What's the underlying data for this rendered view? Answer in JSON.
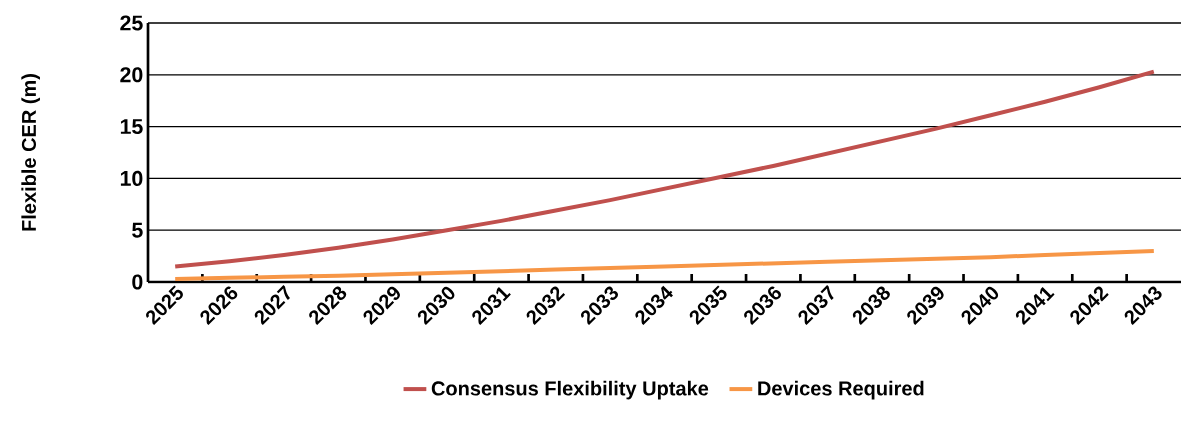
{
  "chart_data": {
    "type": "line",
    "ylabel": "Flexible CER (m)",
    "categories": [
      "2025",
      "2026",
      "2027",
      "2028",
      "2029",
      "2030",
      "2031",
      "2032",
      "2033",
      "2034",
      "2035",
      "2036",
      "2037",
      "2038",
      "2039",
      "2040",
      "2041",
      "2042",
      "2043"
    ],
    "series": [
      {
        "name": "Consensus Flexibility Uptake",
        "color": "#c0504d",
        "values": [
          1.5,
          2.0,
          2.6,
          3.3,
          4.1,
          5.0,
          5.9,
          6.9,
          7.9,
          9.0,
          10.1,
          11.2,
          12.4,
          13.6,
          14.8,
          16.1,
          17.4,
          18.8,
          20.3
        ]
      },
      {
        "name": "Devices Required",
        "color": "#f79646",
        "values": [
          0.3,
          0.4,
          0.5,
          0.6,
          0.75,
          0.9,
          1.05,
          1.2,
          1.35,
          1.5,
          1.65,
          1.8,
          1.95,
          2.1,
          2.25,
          2.4,
          2.6,
          2.8,
          3.0
        ]
      }
    ],
    "ylim": [
      0,
      25
    ],
    "yticks": [
      0,
      5,
      10,
      15,
      20,
      25
    ],
    "grid": "y",
    "legend": "bottom",
    "marker": "none",
    "line_style": "solid"
  }
}
